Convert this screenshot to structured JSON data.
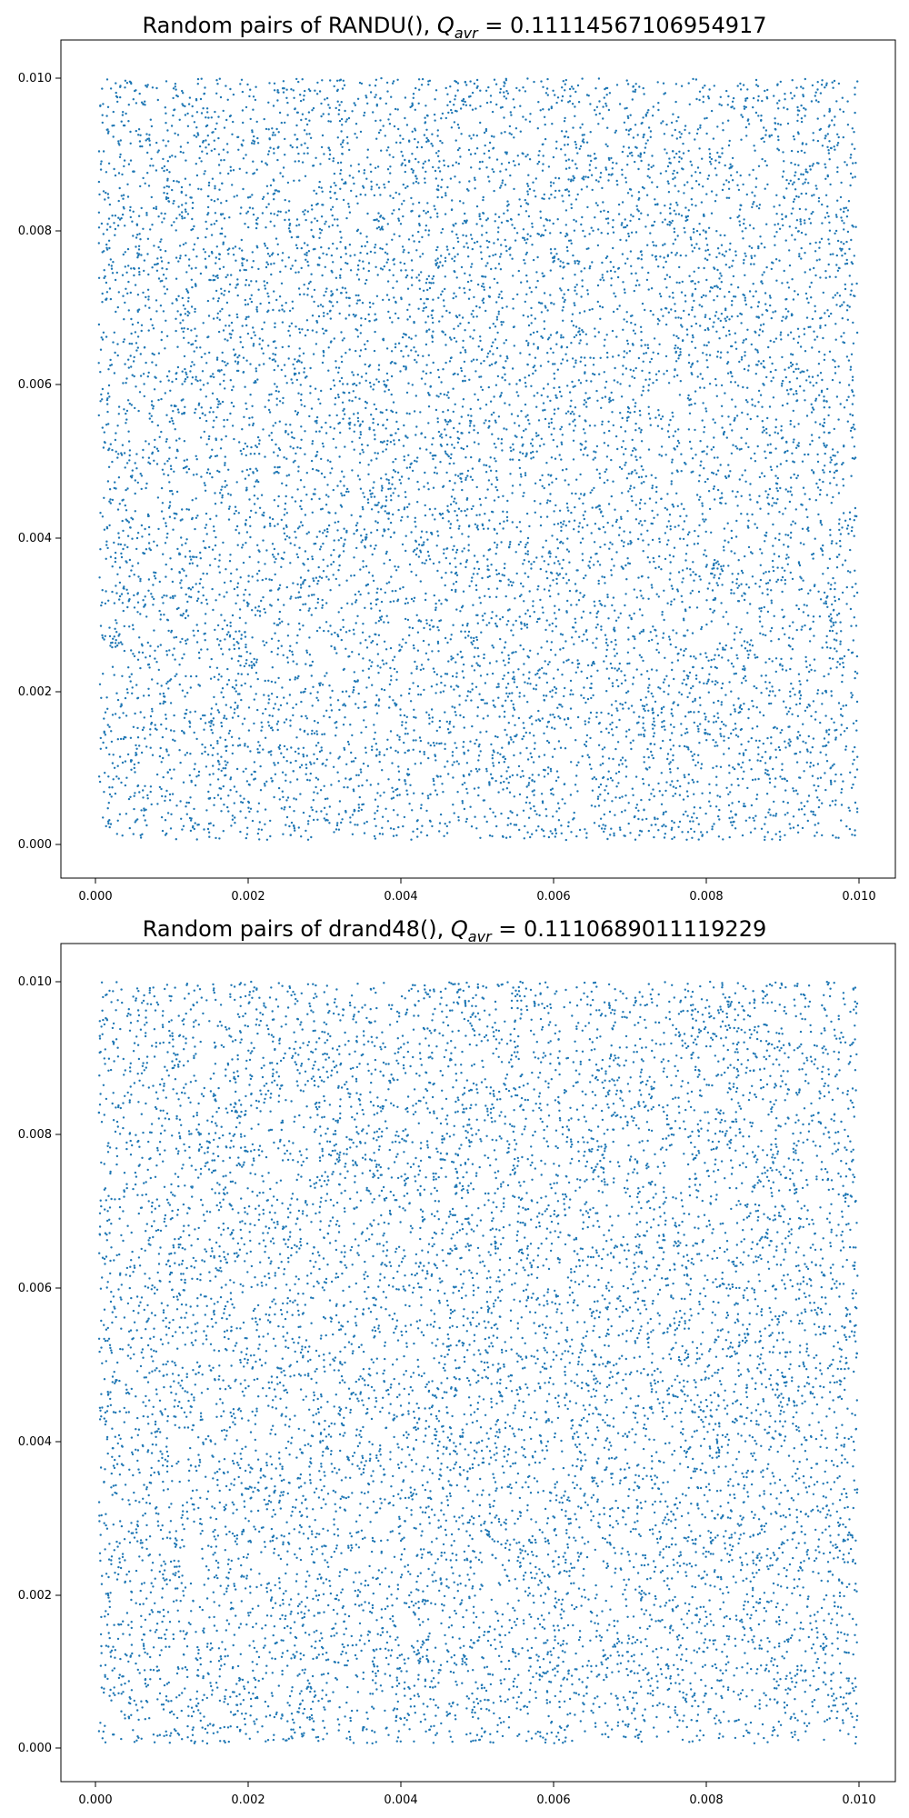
{
  "chart_data": [
    {
      "type": "scatter",
      "title": "Random pairs of RANDU(),  Q_avr = 0.11114567106954917",
      "title_prefix": "Random pairs of RANDU(),  ",
      "title_var": "Q",
      "title_sub": "avr",
      "title_value": " = 0.11114567106954917",
      "xlabel": "",
      "ylabel": "",
      "xlim": [
        -0.0005,
        0.0105
      ],
      "ylim": [
        -0.0005,
        0.0105
      ],
      "xticks": [
        "0.000",
        "0.002",
        "0.004",
        "0.006",
        "0.008",
        "0.010"
      ],
      "yticks": [
        "0.000",
        "0.002",
        "0.004",
        "0.006",
        "0.008",
        "0.010"
      ],
      "grid": false,
      "color": "#1f77b4",
      "point_count": 10000,
      "generator": "RANDU",
      "x_range": [
        0,
        0.01
      ],
      "y_range": [
        0,
        0.01
      ]
    },
    {
      "type": "scatter",
      "title": "Random pairs of drand48(), Q_avr = 0.1110689011119229",
      "title_prefix": "Random pairs of drand48(), ",
      "title_var": "Q",
      "title_sub": "avr",
      "title_value": " = 0.1110689011119229",
      "xlabel": "",
      "ylabel": "",
      "xlim": [
        -0.0005,
        0.0105
      ],
      "ylim": [
        -0.0005,
        0.0105
      ],
      "xticks": [
        "0.000",
        "0.002",
        "0.004",
        "0.006",
        "0.008",
        "0.010"
      ],
      "yticks": [
        "0.000",
        "0.002",
        "0.004",
        "0.006",
        "0.008",
        "0.010"
      ],
      "grid": false,
      "color": "#1f77b4",
      "point_count": 10000,
      "generator": "drand48",
      "x_range": [
        0,
        0.01
      ],
      "y_range": [
        0,
        0.01
      ]
    }
  ]
}
